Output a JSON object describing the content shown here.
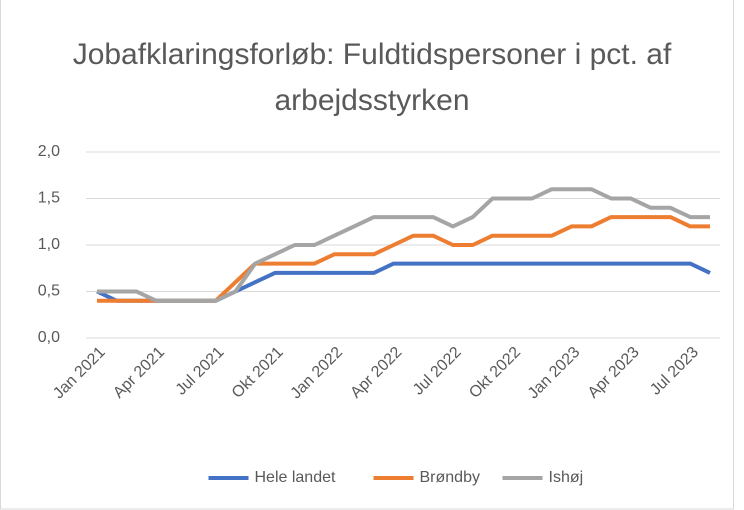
{
  "chart_data": {
    "type": "line",
    "title": "Jobafklaringsforløb: Fuldtidspersoner i pct. af arbejdsstyrken",
    "categories": [
      "Jan 2021",
      null,
      null,
      "Apr 2021",
      null,
      null,
      "Jul 2021",
      null,
      null,
      "Okt 2021",
      null,
      null,
      "Jan 2022",
      null,
      null,
      "Apr 2022",
      null,
      null,
      "Jul 2022",
      null,
      null,
      "Okt 2022",
      null,
      null,
      "Jan 2023",
      null,
      null,
      "Apr 2023",
      null,
      null,
      "Jul 2023",
      null
    ],
    "series": [
      {
        "name": "Hele landet",
        "color": "#4472c4",
        "values": [
          0.5,
          0.4,
          0.4,
          0.4,
          0.4,
          0.4,
          0.4,
          0.5,
          0.6,
          0.7,
          0.7,
          0.7,
          0.7,
          0.7,
          0.7,
          0.8,
          0.8,
          0.8,
          0.8,
          0.8,
          0.8,
          0.8,
          0.8,
          0.8,
          0.8,
          0.8,
          0.8,
          0.8,
          0.8,
          0.8,
          0.8,
          0.7
        ]
      },
      {
        "name": "Brøndby",
        "color": "#ed7d31",
        "values": [
          0.4,
          0.4,
          0.4,
          0.4,
          0.4,
          0.4,
          0.4,
          0.6,
          0.8,
          0.8,
          0.8,
          0.8,
          0.9,
          0.9,
          0.9,
          1.0,
          1.1,
          1.1,
          1.0,
          1.0,
          1.1,
          1.1,
          1.1,
          1.1,
          1.2,
          1.2,
          1.3,
          1.3,
          1.3,
          1.3,
          1.2,
          1.2
        ]
      },
      {
        "name": "Ishøj",
        "color": "#a5a5a5",
        "values": [
          0.5,
          0.5,
          0.5,
          0.4,
          0.4,
          0.4,
          0.4,
          0.5,
          0.8,
          0.9,
          1.0,
          1.0,
          1.1,
          1.2,
          1.3,
          1.3,
          1.3,
          1.3,
          1.2,
          1.3,
          1.5,
          1.5,
          1.5,
          1.6,
          1.6,
          1.6,
          1.5,
          1.5,
          1.4,
          1.4,
          1.3,
          1.3
        ]
      }
    ],
    "ylim": [
      0,
      2
    ],
    "yticks": [
      {
        "value": 0,
        "label": "0,0"
      },
      {
        "value": 0.5,
        "label": "0,5"
      },
      {
        "value": 1,
        "label": "1,0"
      },
      {
        "value": 1.5,
        "label": "1,5"
      },
      {
        "value": 2,
        "label": "2,0"
      }
    ],
    "grid": true,
    "legend": "bottom"
  }
}
